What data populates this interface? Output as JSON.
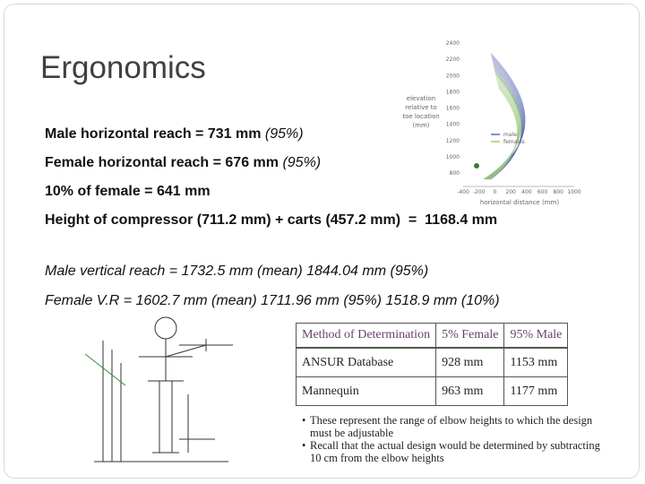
{
  "title": "Ergonomics",
  "lines": [
    {
      "main": "Male horizontal reach = 731 mm",
      "note": "(95%)"
    },
    {
      "main": "Female horizontal reach = 676 mm",
      "note": "(95%)"
    },
    {
      "main": "10% of female = 641 mm"
    },
    {
      "main": "Height of compressor (711.2 mm) + carts (457.2 mm)  =  1168.4 mm"
    }
  ],
  "italic_lines": [
    "Male vertical reach = 1732.5 mm (mean) 1844.04 mm (95%)",
    "Female V.R = 1602.7 mm (mean) 1711.96 mm (95%) 1518.9 mm (10%)"
  ],
  "figure": {
    "ylabel": [
      "elevation",
      "relative to",
      "toe location",
      "(mm)"
    ],
    "xlabel": "horizontal distance (mm)",
    "yticks": [
      800,
      1000,
      1200,
      1400,
      1600,
      1800,
      2000,
      2200,
      2400
    ],
    "xticks": [
      -400,
      -200,
      0,
      200,
      400,
      600,
      800,
      1000
    ],
    "legend": [
      {
        "name": "males",
        "color": "#5b6bb5"
      },
      {
        "name": "females",
        "color": "#9cc97c"
      }
    ]
  },
  "table": {
    "header": [
      "Method of Determination",
      "5% Female",
      "95% Male"
    ],
    "rows": [
      [
        "ANSUR Database",
        "928 mm",
        "1153 mm"
      ],
      [
        "Mannequin",
        "963 mm",
        "1177 mm"
      ]
    ]
  },
  "notes": [
    "These represent the range of elbow heights to which the design must be adjustable",
    "Recall that the actual design would be determined by subtracting 10 cm from the elbow heights"
  ]
}
